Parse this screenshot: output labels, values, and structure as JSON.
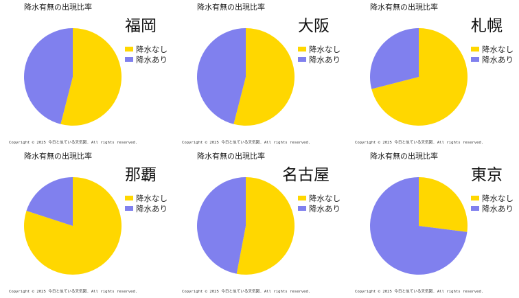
{
  "copyright": "Copyright ©  2025  今日と似ている天気図. All rights reserved.",
  "colors": {
    "rain_none": "#FFD700",
    "rain_some": "#8080EE"
  },
  "chart_data": [
    {
      "type": "pie",
      "title": "降水有無の出現比率",
      "subtitle": "福岡",
      "legend": [
        "降水なし",
        "降水あり"
      ],
      "legend_position": "right",
      "values": [
        54,
        46
      ]
    },
    {
      "type": "pie",
      "title": "降水有無の出現比率",
      "subtitle": "大阪",
      "legend": [
        "降水なし",
        "降水あり"
      ],
      "legend_position": "right",
      "values": [
        54,
        46
      ]
    },
    {
      "type": "pie",
      "title": "降水有無の出現比率",
      "subtitle": "札幌",
      "legend": [
        "降水なし",
        "降水あり"
      ],
      "legend_position": "right",
      "values": [
        71,
        29
      ]
    },
    {
      "type": "pie",
      "title": "降水有無の出現比率",
      "subtitle": "那覇",
      "legend": [
        "降水なし",
        "降水あり"
      ],
      "legend_position": "right",
      "values": [
        80,
        20
      ]
    },
    {
      "type": "pie",
      "title": "降水有無の出現比率",
      "subtitle": "名古屋",
      "legend": [
        "降水なし",
        "降水あり"
      ],
      "legend_position": "right",
      "values": [
        53,
        47
      ]
    },
    {
      "type": "pie",
      "title": "降水有無の出現比率",
      "subtitle": "東京",
      "legend": [
        "降水なし",
        "降水あり"
      ],
      "legend_position": "right",
      "values": [
        27,
        73
      ]
    }
  ]
}
